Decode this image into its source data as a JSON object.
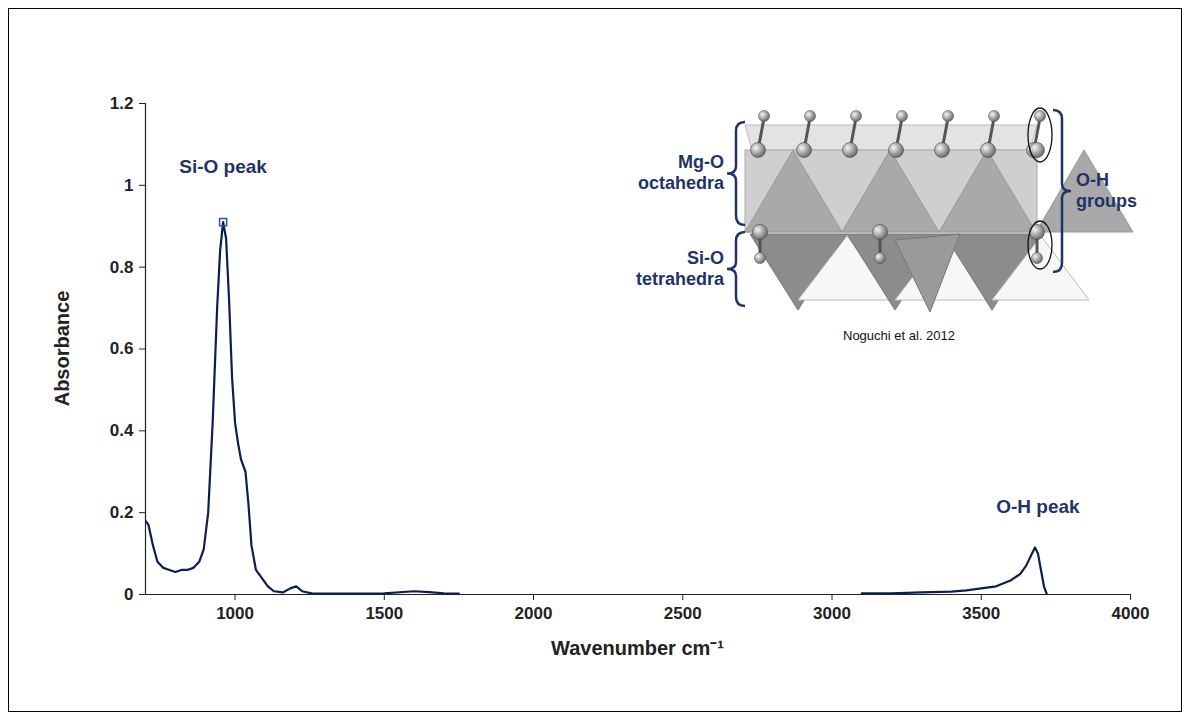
{
  "chart_data": {
    "type": "line",
    "x_label": "Wavenumber cm⁻¹",
    "y_label": "Absorbance",
    "x": [
      700,
      710,
      725,
      740,
      760,
      780,
      800,
      820,
      840,
      860,
      880,
      895,
      910,
      925,
      940,
      950,
      960,
      970,
      980,
      990,
      1000,
      1010,
      1020,
      1035,
      1045,
      1055,
      1070,
      1090,
      1110,
      1130,
      1160,
      1185,
      1205,
      1225,
      1260,
      1300,
      1400,
      1500,
      1600,
      1650,
      1700,
      1750,
      1800,
      3100,
      3200,
      3300,
      3400,
      3450,
      3500,
      3550,
      3600,
      3630,
      3650,
      3670,
      3680,
      3690,
      3700,
      3710,
      3720
    ],
    "values": [
      0.18,
      0.17,
      0.12,
      0.08,
      0.065,
      0.06,
      0.055,
      0.06,
      0.06,
      0.065,
      0.08,
      0.11,
      0.2,
      0.42,
      0.7,
      0.84,
      0.91,
      0.87,
      0.72,
      0.53,
      0.42,
      0.37,
      0.33,
      0.3,
      0.22,
      0.12,
      0.06,
      0.04,
      0.02,
      0.008,
      0.005,
      0.015,
      0.02,
      0.008,
      0.002,
      0.002,
      0.002,
      0.003,
      0.008,
      0.006,
      0.003,
      0.002,
      null,
      0.003,
      0.003,
      0.005,
      0.007,
      0.01,
      0.015,
      0.02,
      0.035,
      0.05,
      0.07,
      0.1,
      0.115,
      0.1,
      0.06,
      0.02,
      0
    ],
    "color": "#0b1f4f",
    "xlim": [
      700,
      4000
    ],
    "xticks": [
      1000,
      1500,
      2000,
      2500,
      3000,
      3500,
      4000
    ],
    "ylim": [
      0,
      1.2
    ],
    "yticks": [
      0,
      0.2,
      0.4,
      0.6,
      0.8,
      1,
      1.2
    ],
    "grid": false,
    "peak_marker": {
      "x": 960,
      "y": 0.91,
      "marker": "square",
      "color": "#2a52be"
    },
    "annotations": [
      {
        "text": "Si-O peak",
        "x": 960,
        "y": 1.03
      },
      {
        "text": "O-H peak",
        "x": 3690,
        "y": 0.2
      }
    ],
    "inset": {
      "labels": {
        "octahedra": "Mg-O octahedra",
        "tetrahedra": "Si-O tetrahedra",
        "hydroxyl": "O-H groups"
      },
      "credit": "Noguchi et al. 2012"
    }
  }
}
